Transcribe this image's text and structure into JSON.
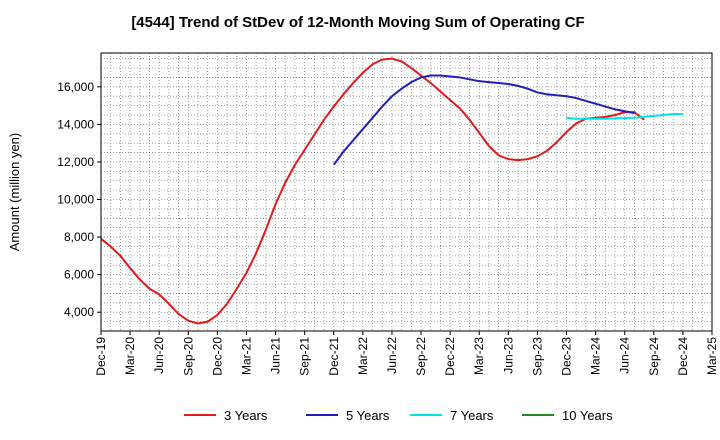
{
  "chart_data": {
    "type": "line",
    "title": "[4544]  Trend of StDev of 12-Month Moving Sum of Operating CF",
    "xlabel": "",
    "ylabel": "Amount (million yen)",
    "ylim": [
      3000,
      17800
    ],
    "yticks": [
      4000,
      6000,
      8000,
      10000,
      12000,
      14000,
      16000
    ],
    "ytick_labels": [
      "4,000",
      "6,000",
      "8,000",
      "10,000",
      "12,000",
      "14,000",
      "16,000"
    ],
    "x_tick_labels": [
      "Dec-19",
      "Mar-20",
      "Jun-20",
      "Sep-20",
      "Dec-20",
      "Mar-21",
      "Jun-21",
      "Sep-21",
      "Dec-21",
      "Mar-22",
      "Jun-22",
      "Sep-22",
      "Dec-22",
      "Mar-23",
      "Jun-23",
      "Sep-23",
      "Dec-23",
      "Mar-24",
      "Jun-24",
      "Sep-24",
      "Dec-24",
      "Mar-25"
    ],
    "grid": true,
    "legend_position": "bottom",
    "series": [
      {
        "name": "3 Years",
        "color": "#e31a1c",
        "start_index": 0,
        "values": [
          7900,
          7500,
          7000,
          6350,
          5750,
          5250,
          4950,
          4450,
          3900,
          3550,
          3400,
          3500,
          3850,
          4450,
          5250,
          6100,
          7150,
          8400,
          9750,
          10900,
          11850,
          12650,
          13450,
          14250,
          14950,
          15600,
          16200,
          16750,
          17200,
          17450,
          17500,
          17350,
          17000,
          16600,
          16200,
          15750,
          15300,
          14850,
          14250,
          13550,
          12850,
          12350,
          12150,
          12100,
          12150,
          12300,
          12600,
          13050,
          13600,
          14050,
          14300,
          14350,
          14400,
          14500,
          14650,
          14650,
          14250
        ]
      },
      {
        "name": "5 Years",
        "color": "#1f1fbf",
        "start_index": 24,
        "values": [
          11850,
          12550,
          13150,
          13750,
          14350,
          14950,
          15500,
          15900,
          16250,
          16500,
          16600,
          16600,
          16550,
          16500,
          16400,
          16300,
          16250,
          16200,
          16150,
          16050,
          15900,
          15700,
          15600,
          15550,
          15500,
          15400,
          15250,
          15100,
          14950,
          14800,
          14700,
          14600
        ]
      },
      {
        "name": "7 Years",
        "color": "#00e5e5",
        "start_index": 48,
        "values": [
          14350,
          14300,
          14300,
          14300,
          14300,
          14320,
          14330,
          14350,
          14400,
          14450,
          14500,
          14550,
          14550
        ]
      },
      {
        "name": "10 Years",
        "color": "#228b22",
        "start_index": 0,
        "values": []
      }
    ]
  }
}
